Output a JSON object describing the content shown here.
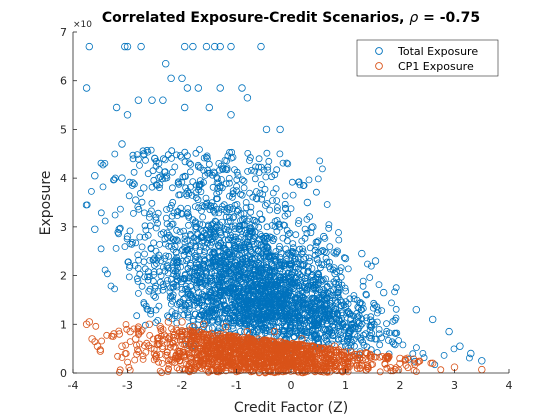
{
  "chart_data": {
    "type": "scatter",
    "title": "Correlated Exposure-Credit Scenarios, ρ = -0.75",
    "title_prefix": "Correlated Exposure-Credit Scenarios, ",
    "title_rho": "ρ",
    "title_suffix": " = -0.75",
    "xlabel": "Credit Factor (Z)",
    "ylabel": "Exposure",
    "xlim": [
      -4,
      4
    ],
    "ylim": [
      0,
      7
    ],
    "xticks": [
      "-4",
      "-3",
      "-2",
      "-1",
      "0",
      "1",
      "2",
      "3",
      "4"
    ],
    "yticks": [
      "0",
      "1",
      "2",
      "3",
      "4",
      "5",
      "6",
      "7"
    ],
    "y_exponent_label": "×10",
    "legend_position": "top-right",
    "marker": "open-circle",
    "series": [
      {
        "name": "Total Exposure",
        "color": "#0072BD",
        "points": [
          [
            -3.7,
            6.7
          ],
          [
            -3.05,
            6.7
          ],
          [
            -3.0,
            6.7
          ],
          [
            -2.75,
            6.7
          ],
          [
            -1.95,
            6.7
          ],
          [
            -1.8,
            6.7
          ],
          [
            -1.55,
            6.7
          ],
          [
            -1.4,
            6.7
          ],
          [
            -1.3,
            6.7
          ],
          [
            -1.1,
            6.7
          ],
          [
            -0.55,
            6.7
          ],
          [
            -3.75,
            5.85
          ],
          [
            -2.3,
            6.35
          ],
          [
            -2.2,
            6.05
          ],
          [
            -2.0,
            6.05
          ],
          [
            -1.9,
            5.85
          ],
          [
            -1.7,
            5.85
          ],
          [
            -1.3,
            5.85
          ],
          [
            -0.9,
            5.85
          ],
          [
            -0.8,
            5.65
          ],
          [
            -3.2,
            5.45
          ],
          [
            -2.8,
            5.6
          ],
          [
            -2.55,
            5.6
          ],
          [
            -2.35,
            5.6
          ],
          [
            -1.95,
            5.45
          ],
          [
            -1.5,
            5.45
          ],
          [
            -1.1,
            5.3
          ],
          [
            -0.45,
            5.0
          ],
          [
            -0.2,
            5.0
          ],
          [
            -3.6,
            4.05
          ],
          [
            -3.1,
            4.7
          ],
          [
            -3.0,
            5.3
          ],
          [
            -2.7,
            4.5
          ],
          [
            -2.5,
            4.4
          ],
          [
            -3.6,
            2.95
          ],
          [
            -3.15,
            2.95
          ],
          [
            -3.0,
            2.8
          ],
          [
            -3.1,
            4.0
          ],
          [
            -2.9,
            3.9
          ],
          [
            -2.85,
            3.55
          ],
          [
            -2.7,
            3.8
          ],
          [
            0.3,
            3.5
          ],
          [
            0.4,
            3.0
          ],
          [
            0.6,
            2.8
          ],
          [
            0.85,
            2.5
          ],
          [
            1.0,
            2.35
          ],
          [
            1.3,
            2.45
          ],
          [
            1.55,
            2.3
          ],
          [
            1.7,
            1.65
          ],
          [
            2.3,
            1.3
          ],
          [
            2.6,
            1.1
          ],
          [
            2.9,
            0.85
          ],
          [
            3.1,
            0.55
          ],
          [
            3.3,
            0.4
          ],
          [
            3.5,
            0.25
          ]
        ]
      },
      {
        "name": "CP1 Exposure",
        "color": "#D95319",
        "points": [
          [
            -3.75,
            1.0
          ],
          [
            -3.7,
            1.05
          ],
          [
            -3.65,
            0.7
          ],
          [
            -3.55,
            0.55
          ],
          [
            -3.5,
            0.45
          ],
          [
            -3.25,
            0.8
          ],
          [
            -3.15,
            0.8
          ],
          [
            -3.1,
            0.55
          ],
          [
            -2.95,
            0.85
          ],
          [
            -2.85,
            0.7
          ],
          [
            -2.6,
            1.0
          ],
          [
            -2.4,
            0.95
          ],
          [
            -2.25,
            1.05
          ],
          [
            -2.0,
            1.05
          ],
          [
            -1.8,
            0.95
          ],
          [
            -1.6,
            1.0
          ],
          [
            -1.2,
            0.95
          ],
          [
            -0.8,
            0.85
          ],
          [
            -0.3,
            0.85
          ],
          [
            0.2,
            0.7
          ],
          [
            0.8,
            0.55
          ],
          [
            1.4,
            0.4
          ],
          [
            2.0,
            0.3
          ],
          [
            2.6,
            0.2
          ],
          [
            3.0,
            0.12
          ],
          [
            3.5,
            0.07
          ]
        ]
      }
    ]
  }
}
